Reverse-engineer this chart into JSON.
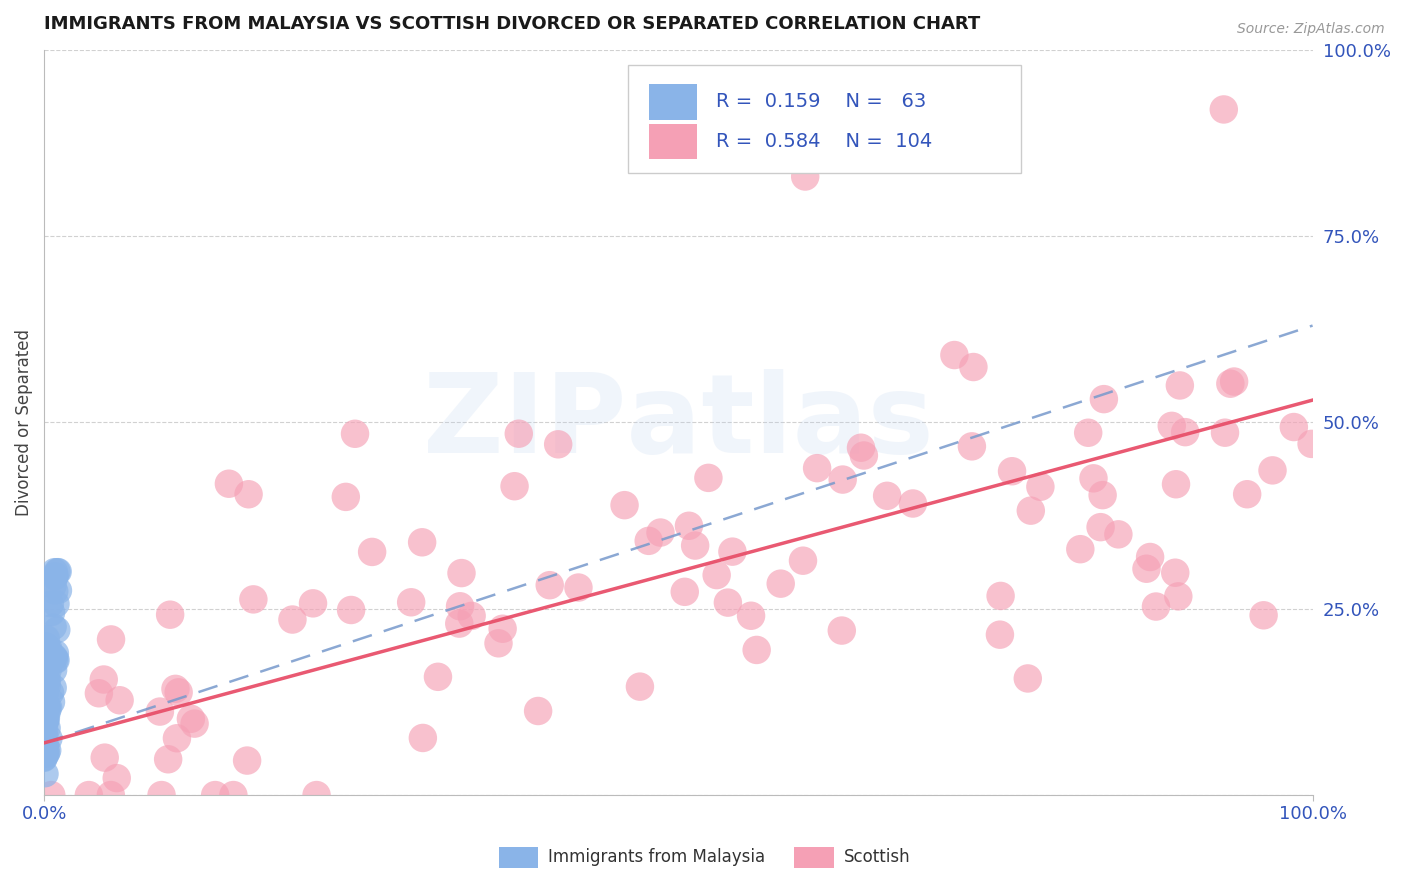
{
  "title": "IMMIGRANTS FROM MALAYSIA VS SCOTTISH DIVORCED OR SEPARATED CORRELATION CHART",
  "source": "Source: ZipAtlas.com",
  "ylabel": "Divorced or Separated",
  "legend_labels": [
    "Immigrants from Malaysia",
    "Scottish"
  ],
  "r_malaysia": 0.159,
  "n_malaysia": 63,
  "r_scottish": 0.584,
  "n_scottish": 104,
  "color_malaysia": "#8ab4e8",
  "color_scottish": "#f5a0b5",
  "trend_malaysia_color": "#7799cc",
  "trend_scottish_color": "#e8506a",
  "title_color": "#1a1a1a",
  "axis_label_color": "#3355bb",
  "grid_color": "#cccccc",
  "background_color": "#ffffff",
  "figsize": [
    14.06,
    8.92
  ],
  "dpi": 100
}
